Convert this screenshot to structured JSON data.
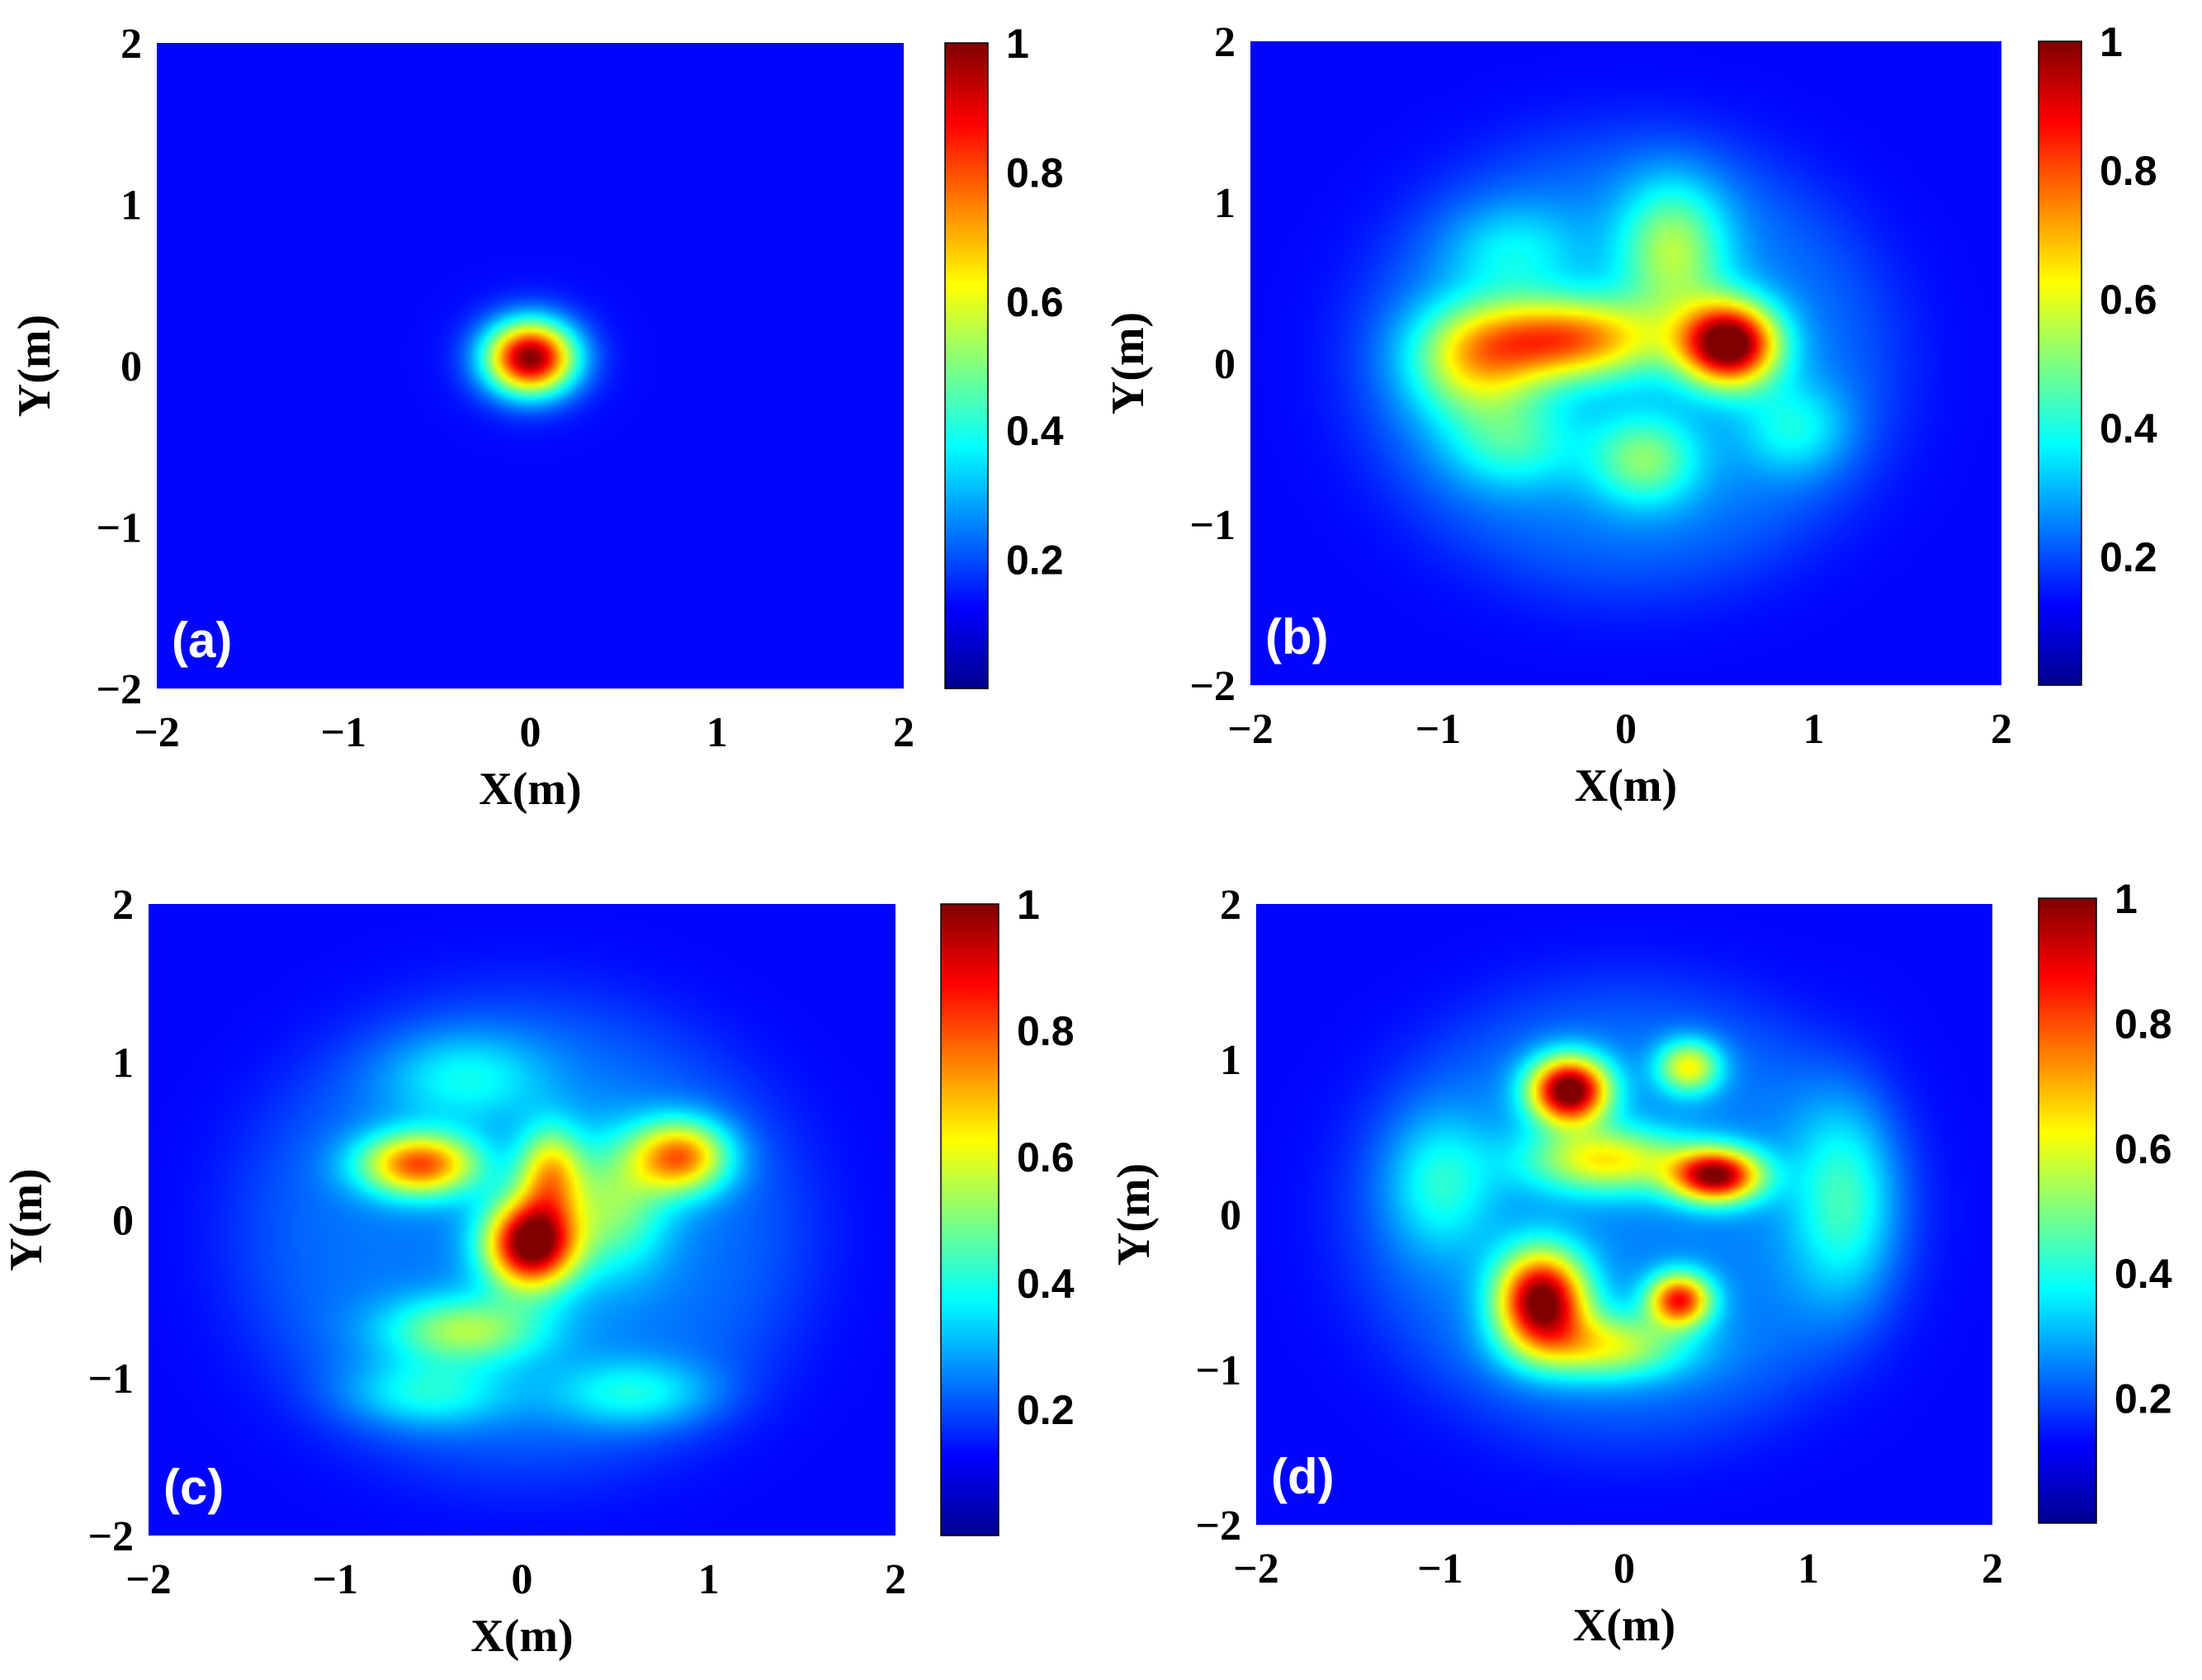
{
  "chart_data": [
    {
      "type": "heatmap",
      "panel_label": "(a)",
      "xlabel": "X(m)",
      "ylabel": "Y(m)",
      "xlim": [
        -2,
        2
      ],
      "ylim": [
        -2,
        2
      ],
      "x_ticks": [
        "−2",
        "−1",
        "0",
        "1",
        "2"
      ],
      "y_ticks": [
        "2",
        "1",
        "0",
        "−1",
        "−2"
      ],
      "colorbar": {
        "range": [
          0,
          1
        ],
        "ticks": [
          "1",
          "0.8",
          "0.6",
          "0.4",
          "0.2"
        ],
        "colormap": "jet"
      },
      "blobs": [
        {
          "x": 0.0,
          "y": 0.05,
          "sx": 0.17,
          "sy": 0.16,
          "amp": 1.0
        }
      ],
      "envelope": null
    },
    {
      "type": "heatmap",
      "panel_label": "(b)",
      "xlabel": "X(m)",
      "ylabel": "Y(m)",
      "xlim": [
        -2,
        2
      ],
      "ylim": [
        -2,
        2
      ],
      "x_ticks": [
        "−2",
        "−1",
        "0",
        "1",
        "2"
      ],
      "y_ticks": [
        "2",
        "1",
        "0",
        "−1",
        "−2"
      ],
      "colorbar": {
        "range": [
          0,
          1
        ],
        "ticks": [
          "1",
          "0.8",
          "0.6",
          "0.4",
          "0.2"
        ],
        "colormap": "jet"
      },
      "blobs": [
        {
          "x": 0.55,
          "y": 0.12,
          "sx": 0.18,
          "sy": 0.18,
          "amp": 0.95
        },
        {
          "x": -0.3,
          "y": 0.15,
          "sx": 0.35,
          "sy": 0.18,
          "amp": 0.6
        },
        {
          "x": -0.8,
          "y": 0.0,
          "sx": 0.25,
          "sy": 0.25,
          "amp": 0.4
        },
        {
          "x": 0.25,
          "y": 0.7,
          "sx": 0.2,
          "sy": 0.3,
          "amp": 0.35
        },
        {
          "x": 0.1,
          "y": -0.6,
          "sx": 0.2,
          "sy": 0.2,
          "amp": 0.3
        },
        {
          "x": -0.6,
          "y": -0.5,
          "sx": 0.25,
          "sy": 0.2,
          "amp": 0.2
        },
        {
          "x": 0.9,
          "y": -0.4,
          "sx": 0.2,
          "sy": 0.2,
          "amp": 0.18
        },
        {
          "x": -0.6,
          "y": 0.7,
          "sx": 0.25,
          "sy": 0.2,
          "amp": 0.15
        }
      ],
      "envelope": {
        "x": 0,
        "y": 0,
        "r": 1.45,
        "amp": 0.14
      }
    },
    {
      "type": "heatmap",
      "panel_label": "(c)",
      "xlabel": "X(m)",
      "ylabel": "Y(m)",
      "xlim": [
        -2,
        2
      ],
      "ylim": [
        -2,
        2
      ],
      "x_ticks": [
        "−2",
        "−1",
        "0",
        "1",
        "2"
      ],
      "y_ticks": [
        "2",
        "1",
        "0",
        "−1",
        "−2"
      ],
      "colorbar": {
        "range": [
          0,
          1
        ],
        "ticks": [
          "1",
          "0.8",
          "0.6",
          "0.4",
          "0.2"
        ],
        "colormap": "jet"
      },
      "blobs": [
        {
          "x": 0.05,
          "y": -0.15,
          "sx": 0.17,
          "sy": 0.2,
          "amp": 0.95
        },
        {
          "x": -0.55,
          "y": 0.35,
          "sx": 0.22,
          "sy": 0.14,
          "amp": 0.65
        },
        {
          "x": 0.85,
          "y": 0.4,
          "sx": 0.18,
          "sy": 0.16,
          "amp": 0.6
        },
        {
          "x": 0.15,
          "y": 0.3,
          "sx": 0.12,
          "sy": 0.2,
          "amp": 0.45
        },
        {
          "x": -0.3,
          "y": -0.7,
          "sx": 0.3,
          "sy": 0.15,
          "amp": 0.35
        },
        {
          "x": 0.5,
          "y": 0.1,
          "sx": 0.2,
          "sy": 0.3,
          "amp": 0.3
        },
        {
          "x": -0.5,
          "y": -1.1,
          "sx": 0.3,
          "sy": 0.15,
          "amp": 0.2
        },
        {
          "x": 0.6,
          "y": -1.1,
          "sx": 0.3,
          "sy": 0.15,
          "amp": 0.2
        },
        {
          "x": -0.3,
          "y": 0.9,
          "sx": 0.3,
          "sy": 0.2,
          "amp": 0.18
        }
      ],
      "envelope": {
        "x": 0,
        "y": -0.1,
        "r": 1.55,
        "amp": 0.13
      }
    },
    {
      "type": "heatmap",
      "panel_label": "(d)",
      "xlabel": "X(m)",
      "ylabel": "Y(m)",
      "xlim": [
        -2,
        2
      ],
      "ylim": [
        -2,
        2
      ],
      "x_ticks": [
        "−2",
        "−1",
        "0",
        "1",
        "2"
      ],
      "y_ticks": [
        "2",
        "1",
        "0",
        "−1",
        "−2"
      ],
      "colorbar": {
        "range": [
          0,
          1
        ],
        "ticks": [
          "1",
          "0.8",
          "0.6",
          "0.4",
          "0.2"
        ],
        "colormap": "jet"
      },
      "blobs": [
        {
          "x": -0.3,
          "y": 0.8,
          "sx": 0.15,
          "sy": 0.15,
          "amp": 0.95
        },
        {
          "x": 0.5,
          "y": 0.25,
          "sx": 0.17,
          "sy": 0.12,
          "amp": 0.85
        },
        {
          "x": -0.45,
          "y": -0.55,
          "sx": 0.17,
          "sy": 0.22,
          "amp": 0.9
        },
        {
          "x": 0.3,
          "y": -0.55,
          "sx": 0.12,
          "sy": 0.12,
          "amp": 0.7
        },
        {
          "x": -0.1,
          "y": 0.35,
          "sx": 0.3,
          "sy": 0.15,
          "amp": 0.45
        },
        {
          "x": 0.35,
          "y": 0.95,
          "sx": 0.12,
          "sy": 0.12,
          "amp": 0.45
        },
        {
          "x": 1.2,
          "y": 0.1,
          "sx": 0.2,
          "sy": 0.45,
          "amp": 0.25
        },
        {
          "x": -1.0,
          "y": 0.2,
          "sx": 0.2,
          "sy": 0.3,
          "amp": 0.2
        },
        {
          "x": -0.1,
          "y": -0.85,
          "sx": 0.3,
          "sy": 0.15,
          "amp": 0.4
        }
      ],
      "envelope": {
        "x": 0,
        "y": 0,
        "r": 1.5,
        "amp": 0.14
      }
    }
  ]
}
